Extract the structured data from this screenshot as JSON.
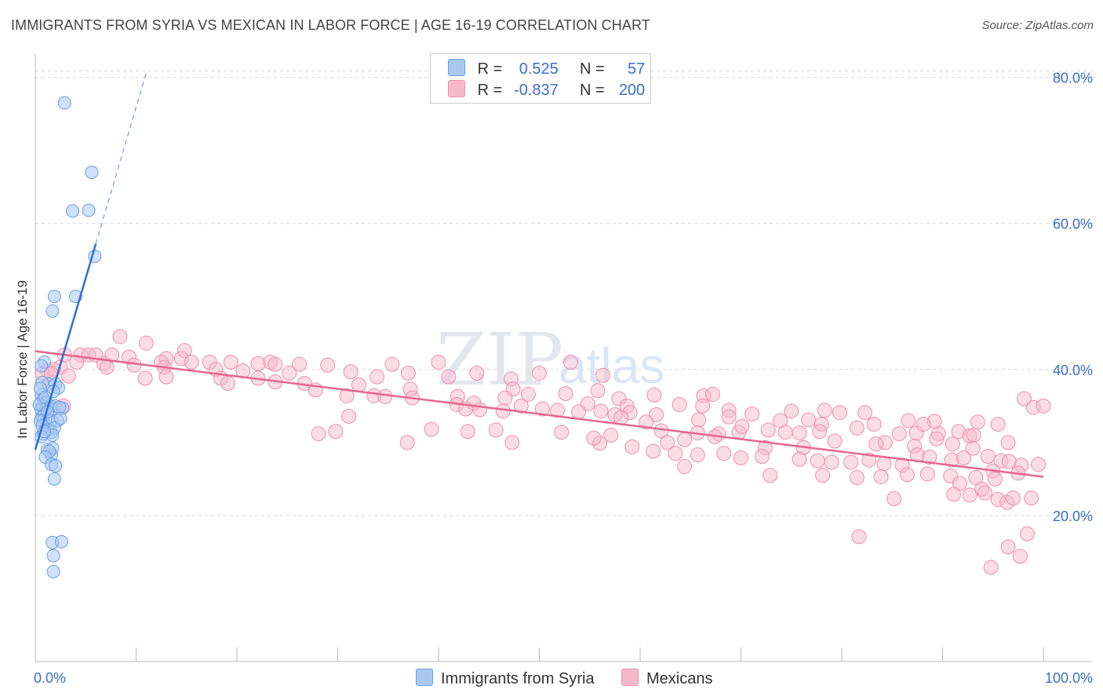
{
  "header": {
    "title": "IMMIGRANTS FROM SYRIA VS MEXICAN IN LABOR FORCE | AGE 16-19 CORRELATION CHART",
    "source": "Source: ZipAtlas.com"
  },
  "legend": {
    "r_label": "R =",
    "n_label": "N =",
    "rows": [
      {
        "name": "Immigrants from Syria",
        "r": "0.525",
        "n": "57"
      },
      {
        "name": "Mexicans",
        "r": "-0.837",
        "n": "200"
      }
    ]
  },
  "watermark": {
    "zip": "ZIP",
    "atlas": "atlas"
  },
  "colors": {
    "syria_fill": "#a9c9f2",
    "syria_stroke": "#6a9ee0",
    "syria_line": "#2f6fd6",
    "mexican_fill": "#f6b9cc",
    "mexican_stroke": "#ee8fae",
    "mexican_line": "#e7668f",
    "axis_text": "#3a6fc8",
    "grid": "#d8d8d8"
  },
  "chart_data": {
    "type": "scatter",
    "title": "IMMIGRANTS FROM SYRIA VS MEXICAN IN LABOR FORCE | AGE 16-19 CORRELATION CHART",
    "xlabel": "",
    "ylabel": "In Labor Force | Age 16-19",
    "xlim": [
      0,
      100
    ],
    "ylim": [
      0,
      82
    ],
    "x_tick_labels": [
      "0.0%",
      "100.0%"
    ],
    "y_ticks": [
      20,
      40,
      60,
      80
    ],
    "y_tick_labels": [
      "20.0%",
      "40.0%",
      "60.0%",
      "80.0%"
    ],
    "series": [
      {
        "name": "Immigrants from Syria",
        "r": 0.525,
        "n": 57,
        "trend": {
          "x0": 0.0,
          "y0": 29.0,
          "x1": 6.0,
          "y1": 57.2,
          "dash_to_x": 11.0,
          "dash_to_y": 80.6
        },
        "points": [
          [
            2.9,
            76.5
          ],
          [
            5.6,
            67.0
          ],
          [
            3.7,
            61.7
          ],
          [
            5.3,
            61.8
          ],
          [
            5.9,
            55.5
          ],
          [
            1.9,
            50.0
          ],
          [
            4.0,
            50.0
          ],
          [
            1.7,
            48.0
          ],
          [
            0.9,
            41.0
          ],
          [
            0.6,
            40.5
          ],
          [
            1.3,
            38.0
          ],
          [
            2.0,
            38.0
          ],
          [
            2.3,
            37.5
          ],
          [
            0.7,
            38.2
          ],
          [
            1.8,
            37.0
          ],
          [
            0.6,
            36.5
          ],
          [
            0.8,
            36.0
          ],
          [
            1.1,
            35.5
          ],
          [
            0.7,
            35.0
          ],
          [
            0.6,
            34.5
          ],
          [
            0.9,
            34.0
          ],
          [
            1.5,
            35.0
          ],
          [
            1.7,
            34.6
          ],
          [
            1.1,
            34.7
          ],
          [
            2.0,
            35.0
          ],
          [
            2.7,
            34.7
          ],
          [
            0.4,
            35.2
          ],
          [
            0.7,
            33.5
          ],
          [
            0.8,
            33.0
          ],
          [
            1.6,
            33.0
          ],
          [
            2.2,
            33.0
          ],
          [
            0.5,
            33.0
          ],
          [
            0.7,
            32.3
          ],
          [
            1.2,
            31.7
          ],
          [
            1.6,
            31.4
          ],
          [
            0.8,
            31.2
          ],
          [
            1.9,
            32.0
          ],
          [
            1.7,
            31.0
          ],
          [
            0.6,
            30.8
          ],
          [
            1.2,
            29.0
          ],
          [
            1.6,
            28.3
          ],
          [
            1.7,
            29.2
          ],
          [
            1.4,
            28.8
          ],
          [
            1.0,
            28.0
          ],
          [
            1.6,
            27.0
          ],
          [
            2.0,
            26.8
          ],
          [
            1.9,
            25.0
          ],
          [
            1.7,
            16.3
          ],
          [
            2.6,
            16.4
          ],
          [
            1.8,
            14.5
          ],
          [
            1.8,
            12.3
          ],
          [
            0.5,
            37.4
          ],
          [
            1.0,
            36.2
          ],
          [
            2.4,
            34.8
          ],
          [
            1.2,
            34.2
          ],
          [
            2.5,
            33.3
          ],
          [
            0.9,
            31.5
          ]
        ]
      },
      {
        "name": "Mexicans",
        "r": -0.837,
        "n": 200,
        "trend": {
          "x0": 0.0,
          "y0": 42.5,
          "x1": 100.0,
          "y1": 25.3
        },
        "points": [
          [
            8.4,
            44.5
          ],
          [
            11.0,
            43.6
          ],
          [
            14.8,
            42.6
          ],
          [
            4.5,
            42.0
          ],
          [
            2.9,
            42.0
          ],
          [
            5.3,
            42.0
          ],
          [
            6.0,
            42.0
          ],
          [
            7.6,
            42.0
          ],
          [
            9.3,
            41.7
          ],
          [
            13.0,
            41.5
          ],
          [
            14.5,
            41.5
          ],
          [
            12.5,
            41.0
          ],
          [
            15.5,
            41.0
          ],
          [
            17.3,
            41.0
          ],
          [
            19.4,
            41.0
          ],
          [
            23.3,
            41.0
          ],
          [
            22.1,
            40.8
          ],
          [
            23.8,
            40.7
          ],
          [
            26.2,
            40.7
          ],
          [
            29.0,
            40.6
          ],
          [
            35.4,
            40.7
          ],
          [
            40.0,
            41.0
          ],
          [
            53.1,
            41.0
          ],
          [
            4.1,
            41.0
          ],
          [
            6.8,
            40.8
          ],
          [
            7.1,
            40.3
          ],
          [
            9.8,
            40.6
          ],
          [
            2.5,
            40.3
          ],
          [
            1.8,
            40.0
          ],
          [
            1.2,
            39.8
          ],
          [
            0.7,
            39.4
          ],
          [
            1.6,
            39.4
          ],
          [
            3.3,
            39.1
          ],
          [
            12.8,
            40.3
          ],
          [
            17.9,
            40.0
          ],
          [
            20.6,
            39.8
          ],
          [
            25.2,
            39.5
          ],
          [
            31.3,
            39.7
          ],
          [
            33.9,
            39.0
          ],
          [
            37.0,
            39.5
          ],
          [
            41.0,
            39.0
          ],
          [
            43.8,
            39.5
          ],
          [
            47.2,
            38.7
          ],
          [
            50.0,
            39.5
          ],
          [
            56.3,
            39.2
          ],
          [
            10.9,
            38.8
          ],
          [
            13.0,
            39.0
          ],
          [
            18.4,
            38.8
          ],
          [
            19.1,
            38.1
          ],
          [
            22.1,
            38.8
          ],
          [
            23.8,
            38.3
          ],
          [
            26.7,
            38.1
          ],
          [
            27.8,
            37.2
          ],
          [
            32.1,
            37.9
          ],
          [
            37.2,
            37.3
          ],
          [
            47.4,
            37.3
          ],
          [
            48.9,
            36.6
          ],
          [
            55.8,
            37.1
          ],
          [
            57.9,
            36.0
          ],
          [
            58.7,
            35.0
          ],
          [
            30.9,
            36.4
          ],
          [
            33.6,
            36.4
          ],
          [
            34.7,
            36.3
          ],
          [
            37.4,
            36.1
          ],
          [
            41.9,
            36.3
          ],
          [
            46.6,
            36.1
          ],
          [
            52.6,
            36.7
          ],
          [
            54.8,
            35.3
          ],
          [
            61.4,
            36.5
          ],
          [
            66.3,
            36.4
          ],
          [
            67.2,
            36.6
          ],
          [
            41.8,
            35.2
          ],
          [
            43.5,
            35.4
          ],
          [
            48.2,
            35.0
          ],
          [
            44.1,
            34.5
          ],
          [
            42.7,
            34.6
          ],
          [
            46.4,
            34.3
          ],
          [
            50.3,
            34.6
          ],
          [
            51.8,
            34.4
          ],
          [
            53.9,
            34.2
          ],
          [
            56.1,
            34.3
          ],
          [
            59.0,
            34.1
          ],
          [
            63.9,
            35.2
          ],
          [
            66.2,
            35.0
          ],
          [
            68.8,
            34.4
          ],
          [
            71.1,
            33.9
          ],
          [
            75.0,
            34.3
          ],
          [
            78.3,
            34.4
          ],
          [
            79.8,
            34.1
          ],
          [
            82.3,
            34.1
          ],
          [
            65.8,
            33.1
          ],
          [
            57.5,
            33.8
          ],
          [
            61.6,
            33.8
          ],
          [
            68.8,
            33.5
          ],
          [
            76.7,
            33.1
          ],
          [
            73.9,
            33.0
          ],
          [
            78.0,
            32.5
          ],
          [
            83.2,
            32.5
          ],
          [
            89.2,
            32.9
          ],
          [
            93.5,
            32.8
          ],
          [
            95.5,
            32.5
          ],
          [
            99.0,
            34.8
          ],
          [
            98.1,
            36.0
          ],
          [
            100.0,
            35.0
          ],
          [
            2.8,
            35.0
          ],
          [
            31.1,
            33.6
          ],
          [
            28.1,
            31.2
          ],
          [
            29.8,
            31.5
          ],
          [
            39.3,
            31.8
          ],
          [
            42.9,
            31.5
          ],
          [
            45.7,
            31.7
          ],
          [
            52.2,
            31.4
          ],
          [
            57.1,
            31.0
          ],
          [
            62.1,
            31.6
          ],
          [
            65.7,
            31.3
          ],
          [
            67.8,
            31.2
          ],
          [
            69.8,
            31.4
          ],
          [
            72.7,
            31.7
          ],
          [
            75.8,
            31.3
          ],
          [
            77.8,
            31.5
          ],
          [
            81.5,
            32.0
          ],
          [
            84.3,
            30.0
          ],
          [
            85.7,
            31.2
          ],
          [
            86.6,
            33.0
          ],
          [
            87.4,
            31.3
          ],
          [
            88.1,
            32.5
          ],
          [
            89.6,
            31.2
          ],
          [
            91.6,
            31.5
          ],
          [
            92.7,
            30.9
          ],
          [
            93.1,
            31.0
          ],
          [
            96.5,
            30.0
          ],
          [
            36.9,
            30.0
          ],
          [
            47.3,
            30.0
          ],
          [
            56.0,
            29.9
          ],
          [
            62.7,
            30.0
          ],
          [
            64.4,
            30.4
          ],
          [
            67.4,
            30.8
          ],
          [
            72.4,
            29.3
          ],
          [
            76.2,
            29.3
          ],
          [
            79.3,
            30.2
          ],
          [
            83.4,
            29.8
          ],
          [
            87.2,
            29.5
          ],
          [
            89.4,
            30.5
          ],
          [
            91.0,
            29.8
          ],
          [
            93.0,
            29.2
          ],
          [
            55.4,
            30.6
          ],
          [
            59.2,
            29.4
          ],
          [
            61.3,
            28.8
          ],
          [
            63.5,
            28.5
          ],
          [
            65.7,
            28.3
          ],
          [
            68.3,
            28.5
          ],
          [
            70.0,
            27.9
          ],
          [
            72.1,
            28.1
          ],
          [
            75.8,
            27.7
          ],
          [
            77.6,
            27.5
          ],
          [
            79.0,
            27.3
          ],
          [
            80.9,
            27.3
          ],
          [
            82.7,
            27.6
          ],
          [
            84.2,
            27.1
          ],
          [
            86.0,
            26.9
          ],
          [
            87.5,
            28.3
          ],
          [
            88.7,
            28.0
          ],
          [
            90.9,
            27.6
          ],
          [
            92.1,
            27.9
          ],
          [
            94.5,
            28.1
          ],
          [
            95.8,
            27.5
          ],
          [
            97.8,
            26.9
          ],
          [
            99.5,
            27.0
          ],
          [
            95.0,
            26.1
          ],
          [
            96.6,
            27.4
          ],
          [
            64.4,
            26.7
          ],
          [
            72.9,
            25.5
          ],
          [
            78.1,
            25.5
          ],
          [
            81.5,
            25.2
          ],
          [
            83.9,
            25.3
          ],
          [
            86.5,
            25.6
          ],
          [
            88.5,
            25.7
          ],
          [
            90.8,
            25.4
          ],
          [
            93.3,
            25.2
          ],
          [
            95.2,
            25.0
          ],
          [
            97.5,
            25.8
          ],
          [
            91.7,
            24.4
          ],
          [
            93.9,
            23.6
          ],
          [
            95.5,
            22.2
          ],
          [
            92.7,
            22.8
          ],
          [
            94.2,
            23.1
          ],
          [
            96.4,
            21.8
          ],
          [
            97.0,
            22.4
          ],
          [
            98.8,
            22.4
          ],
          [
            81.7,
            17.1
          ],
          [
            96.5,
            15.7
          ],
          [
            97.7,
            14.4
          ],
          [
            98.4,
            17.5
          ],
          [
            94.8,
            12.9
          ],
          [
            85.2,
            22.3
          ],
          [
            91.1,
            22.9
          ],
          [
            58.1,
            33.4
          ],
          [
            60.6,
            32.8
          ],
          [
            70.1,
            32.2
          ],
          [
            74.4,
            31.4
          ]
        ]
      }
    ]
  }
}
